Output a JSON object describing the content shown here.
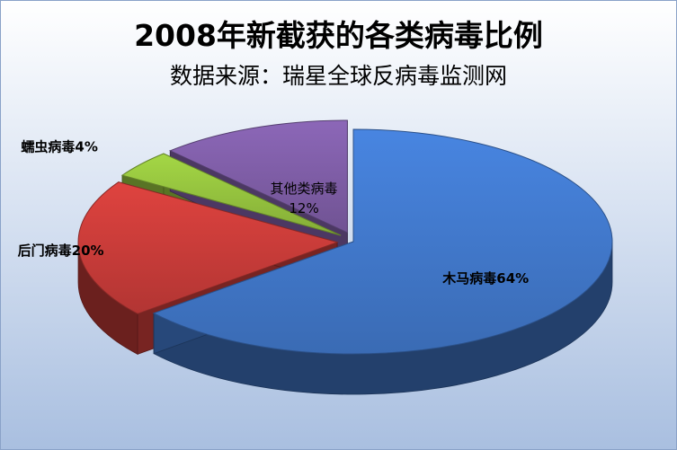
{
  "chart_data": {
    "type": "pie",
    "title": "2008年新截获的各类病毒比例",
    "subtitle": "数据来源：瑞星全球反病毒监测网",
    "slices": [
      {
        "name": "木马病毒",
        "value": 64,
        "label": "木马病毒64%",
        "color": "#3f74c4"
      },
      {
        "name": "后门病毒",
        "value": 20,
        "label": "后门病毒20%",
        "color": "#c23a37"
      },
      {
        "name": "蠕虫病毒",
        "value": 4,
        "label": "蠕虫病毒4%",
        "color": "#8fbb3c"
      },
      {
        "name": "其他类病毒",
        "value": 12,
        "label_line1": "其他类病毒",
        "label_line2": "12%",
        "color": "#7a5aa0"
      }
    ]
  }
}
